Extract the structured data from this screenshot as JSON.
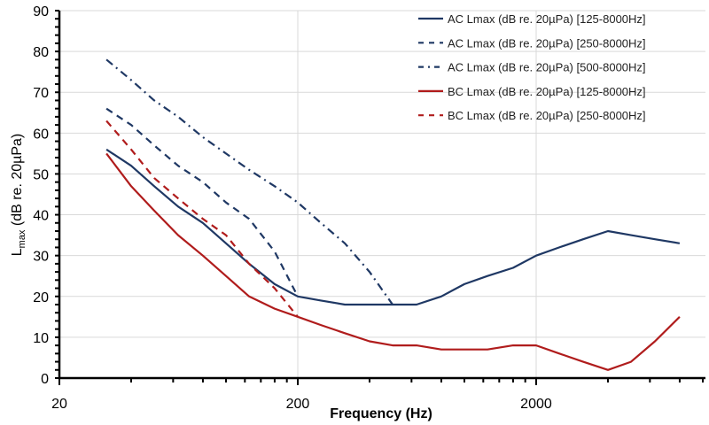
{
  "chart_data": {
    "type": "line",
    "title": "",
    "xlabel": "Frequency (Hz)",
    "ylabel": {
      "main": "L",
      "sub": "max",
      "rest": " (dB re. 20µPa)"
    },
    "x_scale": "log",
    "xlim": [
      20,
      10000
    ],
    "ylim": [
      0,
      90
    ],
    "x_ticks": [
      20,
      200,
      2000
    ],
    "x_tick_labels": [
      "20",
      "200",
      "2000"
    ],
    "y_ticks": [
      0,
      10,
      20,
      30,
      40,
      50,
      60,
      70,
      80,
      90
    ],
    "y_tick_labels": [
      "0",
      "10",
      "20",
      "30",
      "40",
      "50",
      "60",
      "70",
      "80",
      "90"
    ],
    "grid": true,
    "legend_position": "top-right",
    "series": [
      {
        "name": "AC Lmax (dB re. 20µPa) [125-8000Hz]",
        "color": "#1f3864",
        "style": "solid",
        "x": [
          31.5,
          40,
          50,
          63,
          80,
          100,
          125,
          160,
          200,
          250,
          315,
          400,
          500,
          630,
          800,
          1000,
          1250,
          1600,
          2000,
          2500,
          3150,
          4000,
          5000,
          6300,
          8000
        ],
        "y": [
          56,
          52,
          47,
          42,
          38,
          33,
          28,
          23,
          20,
          19,
          18,
          18,
          18,
          18,
          20,
          23,
          25,
          27,
          30,
          32,
          34,
          36,
          35,
          34,
          33
        ]
      },
      {
        "name": "AC Lmax (dB re. 20µPa) [250-8000Hz]",
        "color": "#1f3864",
        "style": "dashed",
        "x": [
          31.5,
          40,
          50,
          63,
          80,
          100,
          125,
          160,
          200
        ],
        "y": [
          66,
          62,
          57,
          52,
          48,
          43,
          39,
          31,
          20
        ]
      },
      {
        "name": "AC Lmax (dB re. 20µPa)  [500-8000Hz]",
        "color": "#1f3864",
        "style": "dashdot",
        "x": [
          31.5,
          40,
          50,
          63,
          80,
          100,
          125,
          160,
          200,
          250,
          315,
          400,
          500
        ],
        "y": [
          78,
          73,
          68,
          64,
          59,
          55,
          51,
          47,
          43,
          38,
          33,
          26,
          18
        ]
      },
      {
        "name": "BC Lmax (dB re. 20µPa) [125-8000Hz]",
        "color": "#b01c1c",
        "style": "solid",
        "x": [
          31.5,
          40,
          50,
          63,
          80,
          100,
          125,
          160,
          200,
          250,
          315,
          400,
          500,
          630,
          800,
          1000,
          1250,
          1600,
          2000,
          2500,
          3150,
          4000,
          5000,
          6300,
          8000
        ],
        "y": [
          55,
          47,
          41,
          35,
          30,
          25,
          20,
          17,
          15,
          13,
          11,
          9,
          8,
          8,
          7,
          7,
          7,
          8,
          8,
          6,
          4,
          2,
          4,
          9,
          15
        ]
      },
      {
        "name": "BC Lmax (dB re. 20µPa) [250-8000Hz]",
        "color": "#b01c1c",
        "style": "dashed",
        "x": [
          31.5,
          40,
          50,
          63,
          80,
          100,
          125,
          160,
          200
        ],
        "y": [
          63,
          56,
          49,
          44,
          39,
          35,
          28,
          22,
          15
        ]
      }
    ]
  }
}
